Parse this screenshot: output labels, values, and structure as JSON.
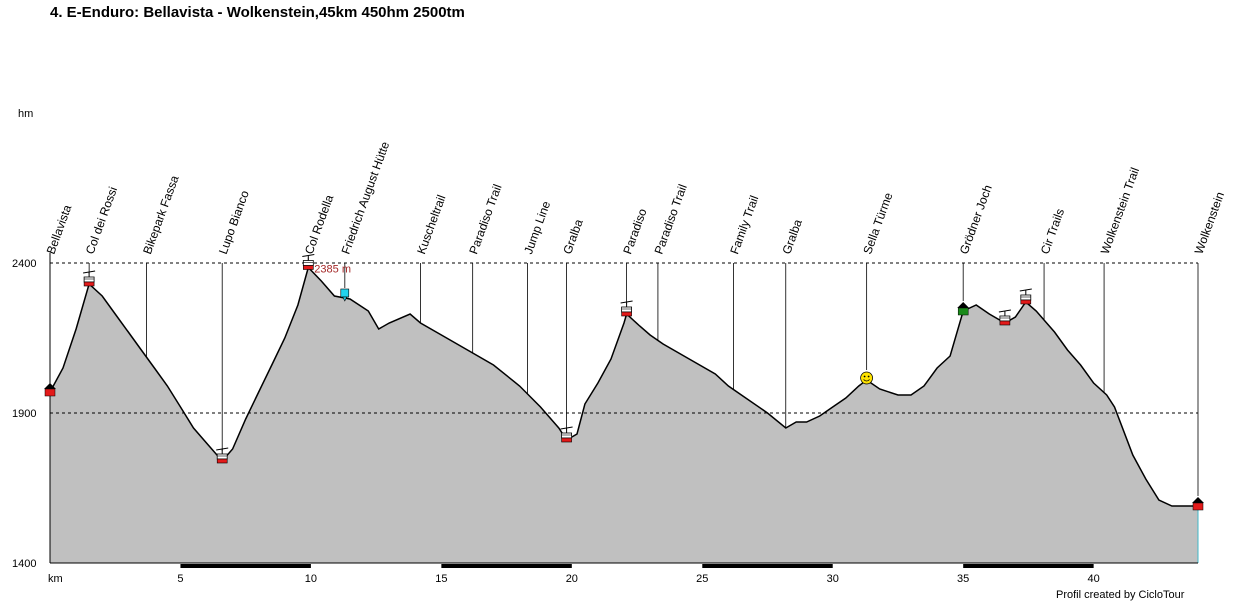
{
  "chart_data": {
    "type": "area",
    "title": "4. E-Enduro: Bellavista - Wolkenstein,45km 450hm 2500tm",
    "ylabel": "hm",
    "xlabel": "km",
    "xlim": [
      0,
      44
    ],
    "ylim": [
      1400,
      2400
    ],
    "x_ticks": [
      5,
      10,
      15,
      20,
      25,
      30,
      35,
      40
    ],
    "y_ticks": [
      1400,
      1900,
      2400
    ],
    "dashed_gridlines": [
      1900,
      2400
    ],
    "fill_color": "#c0c0c0",
    "line_color": "#000000",
    "peak_annotation": {
      "x": 9.9,
      "y": 2385,
      "text": "2385 m"
    },
    "profile": [
      [
        0,
        1970
      ],
      [
        0.5,
        2050
      ],
      [
        1.0,
        2180
      ],
      [
        1.5,
        2330
      ],
      [
        2.0,
        2290
      ],
      [
        2.5,
        2230
      ],
      [
        3.0,
        2170
      ],
      [
        3.5,
        2110
      ],
      [
        4.0,
        2050
      ],
      [
        4.5,
        1990
      ],
      [
        5.0,
        1920
      ],
      [
        5.5,
        1850
      ],
      [
        6.0,
        1800
      ],
      [
        6.6,
        1740
      ],
      [
        7.0,
        1780
      ],
      [
        7.5,
        1880
      ],
      [
        8.0,
        1970
      ],
      [
        8.5,
        2060
      ],
      [
        9.0,
        2150
      ],
      [
        9.5,
        2260
      ],
      [
        9.9,
        2385
      ],
      [
        10.4,
        2340
      ],
      [
        10.9,
        2290
      ],
      [
        11.5,
        2280
      ],
      [
        12.2,
        2240
      ],
      [
        12.6,
        2180
      ],
      [
        13.0,
        2200
      ],
      [
        13.8,
        2230
      ],
      [
        14.2,
        2200
      ],
      [
        15.0,
        2160
      ],
      [
        16.0,
        2110
      ],
      [
        17.0,
        2060
      ],
      [
        18.0,
        1990
      ],
      [
        18.8,
        1920
      ],
      [
        19.5,
        1850
      ],
      [
        19.8,
        1810
      ],
      [
        20.2,
        1830
      ],
      [
        20.5,
        1930
      ],
      [
        21.0,
        2000
      ],
      [
        21.5,
        2080
      ],
      [
        22.0,
        2200
      ],
      [
        22.1,
        2230
      ],
      [
        22.6,
        2190
      ],
      [
        23.0,
        2160
      ],
      [
        23.5,
        2130
      ],
      [
        24.5,
        2080
      ],
      [
        25.5,
        2030
      ],
      [
        26.0,
        1990
      ],
      [
        26.5,
        1960
      ],
      [
        27.5,
        1900
      ],
      [
        28.2,
        1850
      ],
      [
        28.6,
        1870
      ],
      [
        29.0,
        1870
      ],
      [
        29.5,
        1890
      ],
      [
        30.0,
        1920
      ],
      [
        30.5,
        1950
      ],
      [
        31.0,
        1990
      ],
      [
        31.3,
        2010
      ],
      [
        31.8,
        1980
      ],
      [
        32.5,
        1960
      ],
      [
        33.0,
        1960
      ],
      [
        33.5,
        1990
      ],
      [
        34.0,
        2050
      ],
      [
        34.5,
        2090
      ],
      [
        35.0,
        2240
      ],
      [
        35.5,
        2260
      ],
      [
        36.0,
        2230
      ],
      [
        36.6,
        2200
      ],
      [
        37.0,
        2220
      ],
      [
        37.4,
        2270
      ],
      [
        37.8,
        2240
      ],
      [
        38.5,
        2170
      ],
      [
        39.0,
        2110
      ],
      [
        39.5,
        2060
      ],
      [
        40.0,
        2000
      ],
      [
        40.5,
        1960
      ],
      [
        40.8,
        1920
      ],
      [
        41.5,
        1760
      ],
      [
        42.0,
        1680
      ],
      [
        42.5,
        1610
      ],
      [
        43.0,
        1590
      ],
      [
        43.5,
        1590
      ],
      [
        44.0,
        1590
      ]
    ],
    "waypoints": [
      {
        "name": "Bellavista",
        "x": 0,
        "icon": "house-icon"
      },
      {
        "name": "Col dei Rossi",
        "x": 1.5,
        "icon": "cable-car-icon"
      },
      {
        "name": "Bikepark Fassa",
        "x": 3.7,
        "icon": "none"
      },
      {
        "name": "Lupo Bianco",
        "x": 6.6,
        "icon": "cable-car-icon"
      },
      {
        "name": "Col Rodella",
        "x": 9.9,
        "icon": "cable-car-icon"
      },
      {
        "name": "Friedrich August Hütte",
        "x": 11.3,
        "icon": "hut-icon"
      },
      {
        "name": "Kuscheltrail",
        "x": 14.2,
        "icon": "none"
      },
      {
        "name": "Paradiso Trail",
        "x": 16.2,
        "icon": "none"
      },
      {
        "name": "Jump Line",
        "x": 18.3,
        "icon": "none"
      },
      {
        "name": "Gralba",
        "x": 19.8,
        "icon": "cable-car-icon"
      },
      {
        "name": "Paradiso",
        "x": 22.1,
        "icon": "cable-car-icon"
      },
      {
        "name": "Paradiso Trail",
        "x": 23.3,
        "icon": "none"
      },
      {
        "name": "Family Trail",
        "x": 26.2,
        "icon": "none"
      },
      {
        "name": "Gralba",
        "x": 28.2,
        "icon": "none"
      },
      {
        "name": "Sella Türme",
        "x": 31.3,
        "icon": "smiley-icon"
      },
      {
        "name": "Grödner Joch",
        "x": 35.0,
        "icon": "house-green-icon"
      },
      {
        "name": "Cir Trails",
        "x": 38.1,
        "icon": "none"
      },
      {
        "name": "Wolkenstein Trail",
        "x": 40.4,
        "icon": "none"
      },
      {
        "name": "Wolkenstein",
        "x": 44.0,
        "icon": "house-icon"
      }
    ],
    "extra_icons": [
      {
        "x": 36.6,
        "icon": "cable-car-icon"
      },
      {
        "x": 37.4,
        "icon": "cable-car-icon"
      }
    ]
  },
  "credit": "Profil created by CicloTour"
}
